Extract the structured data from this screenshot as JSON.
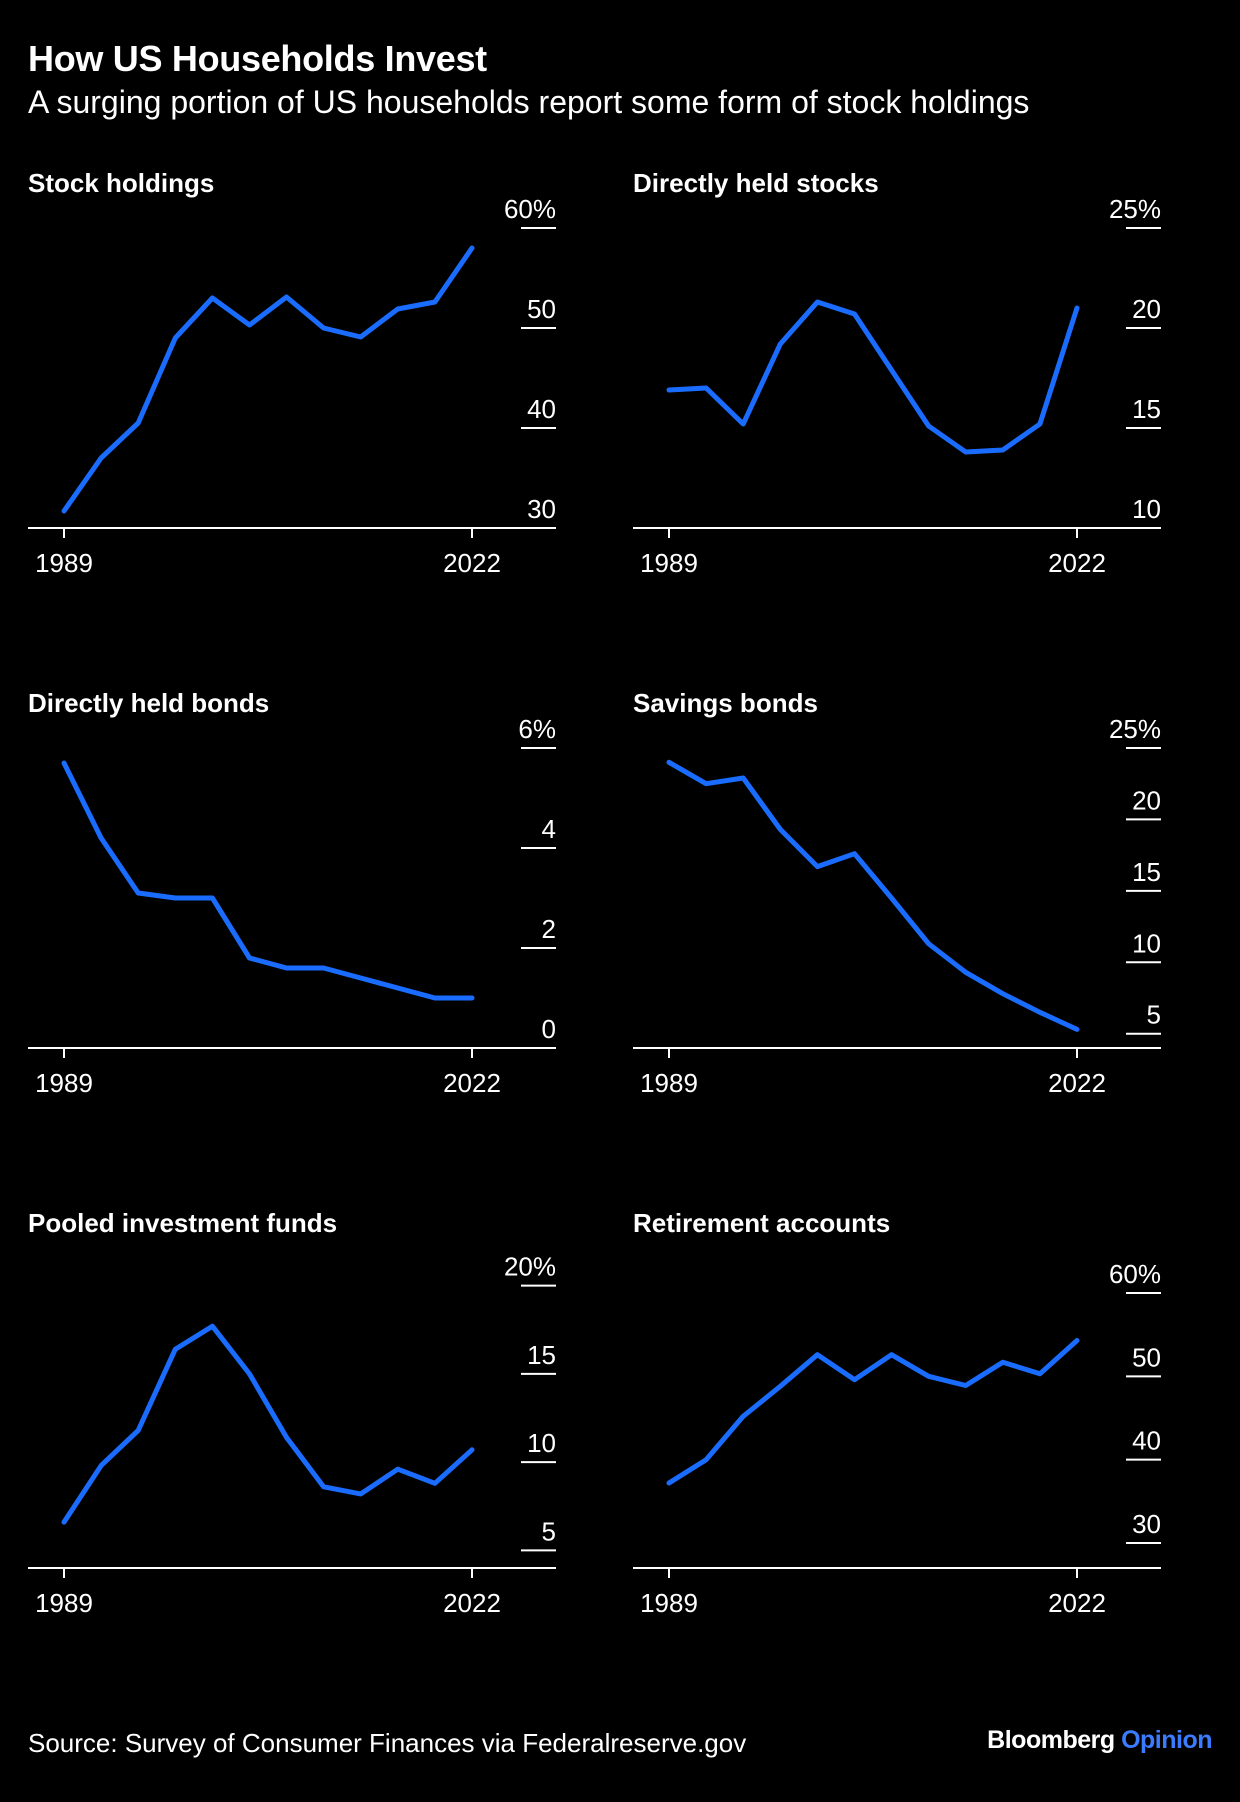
{
  "header": {
    "title": "How US Households Invest",
    "subtitle": "A surging portion of US households report some form of stock holdings"
  },
  "footer": {
    "source": "Source: Survey of Consumer Finances via Federalreserve.gov",
    "brand_primary": "Bloomberg",
    "brand_accent": "Opinion"
  },
  "colors": {
    "line": "#1a6cff",
    "axis": "#ffffff",
    "background": "#000000",
    "brand_accent": "#3b7cff"
  },
  "chart_data": [
    {
      "type": "line",
      "title": "Stock holdings",
      "x": [
        1989,
        1992,
        1995,
        1998,
        2001,
        2004,
        2007,
        2010,
        2013,
        2016,
        2019,
        2022
      ],
      "values": [
        31.7,
        37.0,
        40.5,
        49.0,
        53.0,
        50.3,
        53.1,
        50.0,
        49.1,
        51.9,
        52.6,
        58.0
      ],
      "yticks": [
        30,
        40,
        50,
        60
      ],
      "ytick_labels": [
        "30",
        "40",
        "50",
        "60%"
      ],
      "ylim": [
        30,
        60
      ],
      "xtick_labels": [
        "1989",
        "2022"
      ]
    },
    {
      "type": "line",
      "title": "Directly held stocks",
      "x": [
        1989,
        1992,
        1995,
        1998,
        2001,
        2004,
        2007,
        2010,
        2013,
        2016,
        2019,
        2022
      ],
      "values": [
        16.9,
        17.0,
        15.2,
        19.2,
        21.3,
        20.7,
        17.9,
        15.1,
        13.8,
        13.9,
        15.2,
        21.0
      ],
      "yticks": [
        10,
        15,
        20,
        25
      ],
      "ytick_labels": [
        "10",
        "15",
        "20",
        "25%"
      ],
      "ylim": [
        10,
        25
      ],
      "xtick_labels": [
        "1989",
        "2022"
      ]
    },
    {
      "type": "line",
      "title": "Directly held bonds",
      "x": [
        1989,
        1992,
        1995,
        1998,
        2001,
        2004,
        2007,
        2010,
        2013,
        2016,
        2019,
        2022
      ],
      "values": [
        5.7,
        4.2,
        3.1,
        3.0,
        3.0,
        1.8,
        1.6,
        1.6,
        1.4,
        1.2,
        1.0,
        1.0
      ],
      "yticks": [
        0,
        2,
        4,
        6
      ],
      "ytick_labels": [
        "0",
        "2",
        "4",
        "6%"
      ],
      "ylim": [
        0,
        6
      ],
      "xtick_labels": [
        "1989",
        "2022"
      ]
    },
    {
      "type": "line",
      "title": "Savings bonds",
      "x": [
        1989,
        1992,
        1995,
        1998,
        2001,
        2004,
        2007,
        2010,
        2013,
        2016,
        2019,
        2022
      ],
      "values": [
        24.0,
        22.5,
        22.9,
        19.3,
        16.7,
        17.6,
        14.5,
        11.3,
        9.3,
        7.8,
        6.5,
        5.3
      ],
      "yticks": [
        5,
        10,
        15,
        20,
        25
      ],
      "ytick_labels": [
        "5",
        "10",
        "15",
        "20",
        "25%"
      ],
      "ylim": [
        4,
        25
      ],
      "xtick_labels": [
        "1989",
        "2022"
      ]
    },
    {
      "type": "line",
      "title": "Pooled investment funds",
      "x": [
        1989,
        1992,
        1995,
        1998,
        2001,
        2004,
        2007,
        2010,
        2013,
        2016,
        2019,
        2022
      ],
      "values": [
        6.6,
        9.8,
        11.8,
        16.4,
        17.7,
        15.0,
        11.4,
        8.6,
        8.2,
        9.6,
        8.8,
        10.7
      ],
      "yticks": [
        5,
        10,
        15,
        20
      ],
      "ytick_labels": [
        "5",
        "10",
        "15",
        "20%"
      ],
      "ylim": [
        4,
        21
      ],
      "xtick_labels": [
        "1989",
        "2022"
      ]
    },
    {
      "type": "line",
      "title": "Retirement accounts",
      "x": [
        1989,
        1992,
        1995,
        1998,
        2001,
        2004,
        2007,
        2010,
        2013,
        2016,
        2019,
        2022
      ],
      "values": [
        37.2,
        40.0,
        45.2,
        48.8,
        52.6,
        49.6,
        52.6,
        50.0,
        48.9,
        51.7,
        50.3,
        54.3
      ],
      "yticks": [
        30,
        40,
        50,
        60
      ],
      "ytick_labels": [
        "30",
        "40",
        "50",
        "60%"
      ],
      "ylim": [
        27,
        63
      ],
      "xtick_labels": [
        "1989",
        "2022"
      ]
    }
  ]
}
